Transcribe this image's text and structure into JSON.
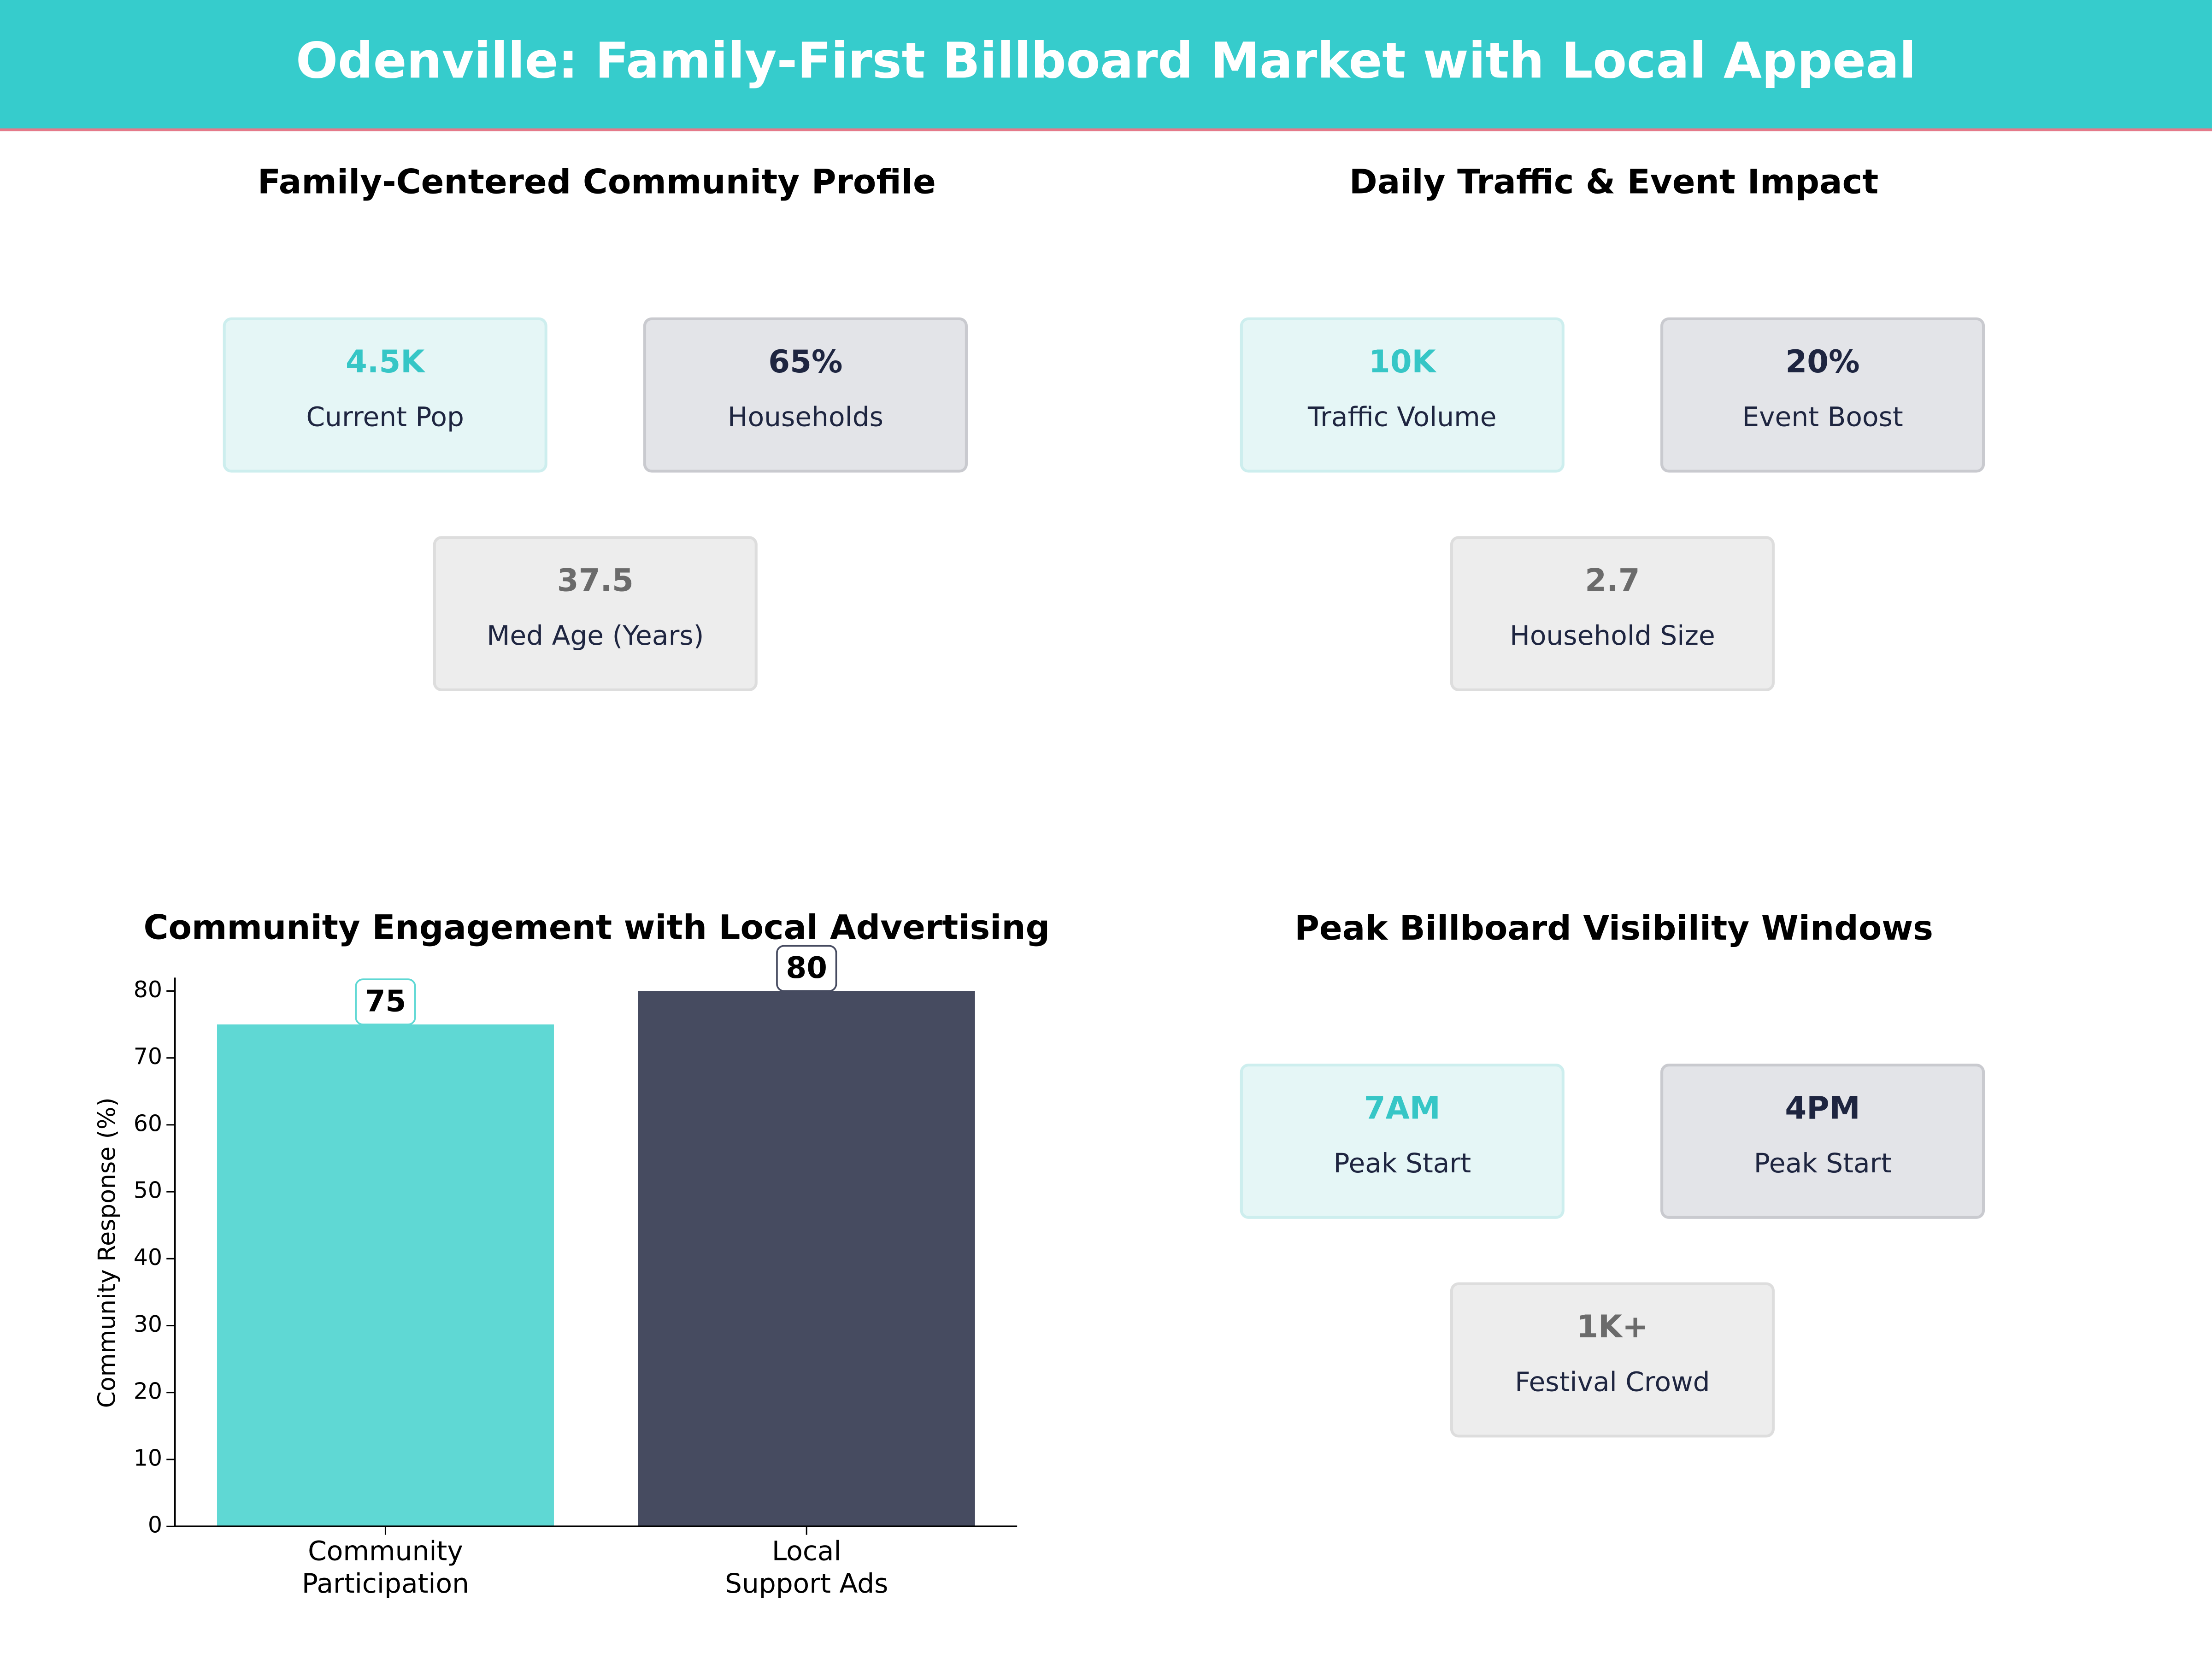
{
  "header": {
    "title": "Odenville: Family-First Billboard Market with Local Appeal"
  },
  "kpi_panels": [
    {
      "title": "Family-Centered Community Profile",
      "cards": [
        {
          "value": "4.5K",
          "label": "Current Pop"
        },
        {
          "value": "65%",
          "label": "Households"
        },
        {
          "value": "37.5",
          "label": "Med Age (Years)"
        }
      ]
    },
    {
      "title": "Daily Traffic & Event Impact",
      "cards": [
        {
          "value": "10K",
          "label": "Traffic Volume"
        },
        {
          "value": "20%",
          "label": "Event Boost"
        },
        {
          "value": "2.7",
          "label": "Household Size"
        }
      ]
    },
    {
      "title": "Peak Billboard Visibility Windows",
      "cards": [
        {
          "value": "7AM",
          "label": "Peak Start"
        },
        {
          "value": "4PM",
          "label": "Peak Start"
        },
        {
          "value": "1K+",
          "label": "Festival Crowd"
        }
      ]
    }
  ],
  "chart_data": {
    "type": "bar",
    "title": "Community Engagement with Local Advertising",
    "y_label": "Community Response (%)",
    "categories": [
      "Community\nParticipation",
      "Local\nSupport Ads"
    ],
    "values": [
      75,
      80
    ],
    "colors": [
      "#5fd8d4",
      "#464b60"
    ],
    "ylim": [
      0,
      82
    ],
    "yticks": [
      0,
      10,
      20,
      30,
      40,
      50,
      60,
      70,
      80
    ]
  }
}
